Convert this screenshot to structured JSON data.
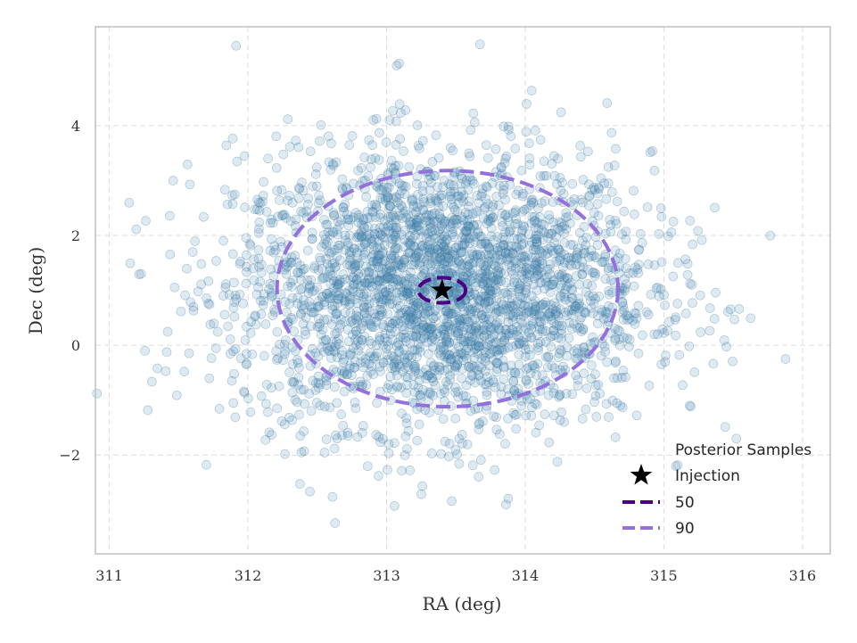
{
  "chart_data": {
    "type": "scatter",
    "xlabel": "RA (deg)",
    "ylabel": "Dec (deg)",
    "xlim": [
      310.9,
      316.2
    ],
    "ylim": [
      -3.8,
      5.8
    ],
    "xticks": [
      311,
      312,
      313,
      314,
      315,
      316
    ],
    "yticks": [
      -2,
      0,
      2,
      4
    ],
    "xtick_labels": [
      "311",
      "312",
      "313",
      "314",
      "315",
      "316"
    ],
    "ytick_labels": [
      "−2",
      "0",
      "2",
      "4"
    ],
    "grid": true,
    "legend_position": "lower-right",
    "legend_title": "Posterior Samples",
    "samples": {
      "name": "Posterior Samples",
      "count": 3000,
      "center": [
        313.4,
        1.0
      ],
      "std": [
        0.75,
        1.25
      ],
      "color": "#4a8ab5",
      "fill_opacity": 0.18
    },
    "injection": {
      "name": "Injection",
      "ra": 313.4,
      "dec": 1.0,
      "color": "#000000"
    },
    "contours": [
      {
        "name": "50",
        "ra_center": 313.4,
        "dec_center": 1.0,
        "ra_halfwidth": 0.17,
        "dec_halfwidth": 0.23,
        "color": "#4b0082"
      },
      {
        "name": "90",
        "ra_center": 313.44,
        "dec_center": 1.03,
        "ra_halfwidth": 1.23,
        "dec_halfwidth": 2.15,
        "color": "#9370db"
      }
    ]
  }
}
